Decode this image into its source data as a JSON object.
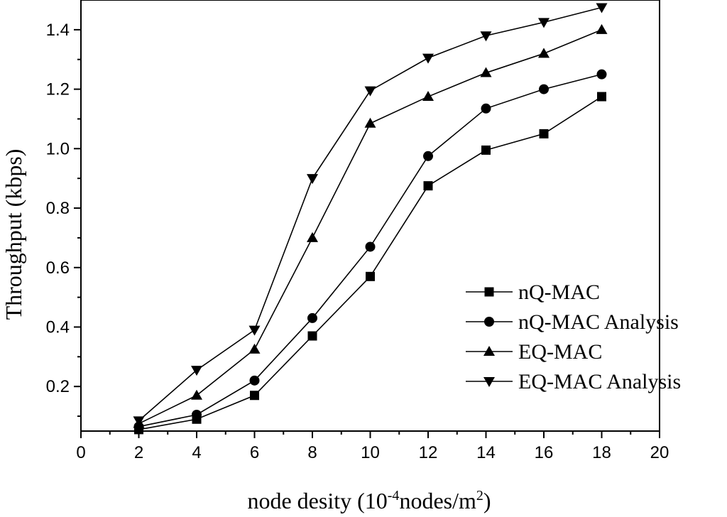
{
  "chart_data": {
    "type": "line",
    "xlabel_main": "node desity (10",
    "xlabel_exp1": "-4",
    "xlabel_mid": "nodes/m",
    "xlabel_exp2": "2",
    "xlabel_end": ")",
    "ylabel": "Throughput (kbps)",
    "xlim": [
      0,
      20
    ],
    "ylim": [
      0.05,
      1.5
    ],
    "xticks": [
      "0",
      "2",
      "4",
      "6",
      "8",
      "10",
      "12",
      "14",
      "16",
      "18",
      "20"
    ],
    "yticks": [
      "0.2",
      "0.4",
      "0.6",
      "0.8",
      "1.0",
      "1.2",
      "1.4"
    ],
    "x": [
      2,
      4,
      6,
      8,
      10,
      12,
      14,
      16,
      18
    ],
    "legend_position": "right",
    "series": [
      {
        "name": "nQ-MAC",
        "marker": "square",
        "values": [
          0.055,
          0.09,
          0.17,
          0.37,
          0.57,
          0.875,
          0.995,
          1.05,
          1.175
        ]
      },
      {
        "name": "nQ-MAC Analysis",
        "marker": "circle",
        "values": [
          0.065,
          0.105,
          0.22,
          0.43,
          0.67,
          0.975,
          1.135,
          1.2,
          1.25
        ]
      },
      {
        "name": "EQ-MAC",
        "marker": "triangle-up",
        "values": [
          0.075,
          0.17,
          0.325,
          0.7,
          1.085,
          1.175,
          1.255,
          1.32,
          1.4
        ]
      },
      {
        "name": "EQ-MAC Analysis",
        "marker": "triangle-down",
        "values": [
          0.085,
          0.255,
          0.39,
          0.9,
          1.195,
          1.305,
          1.38,
          1.425,
          1.475
        ]
      }
    ]
  }
}
